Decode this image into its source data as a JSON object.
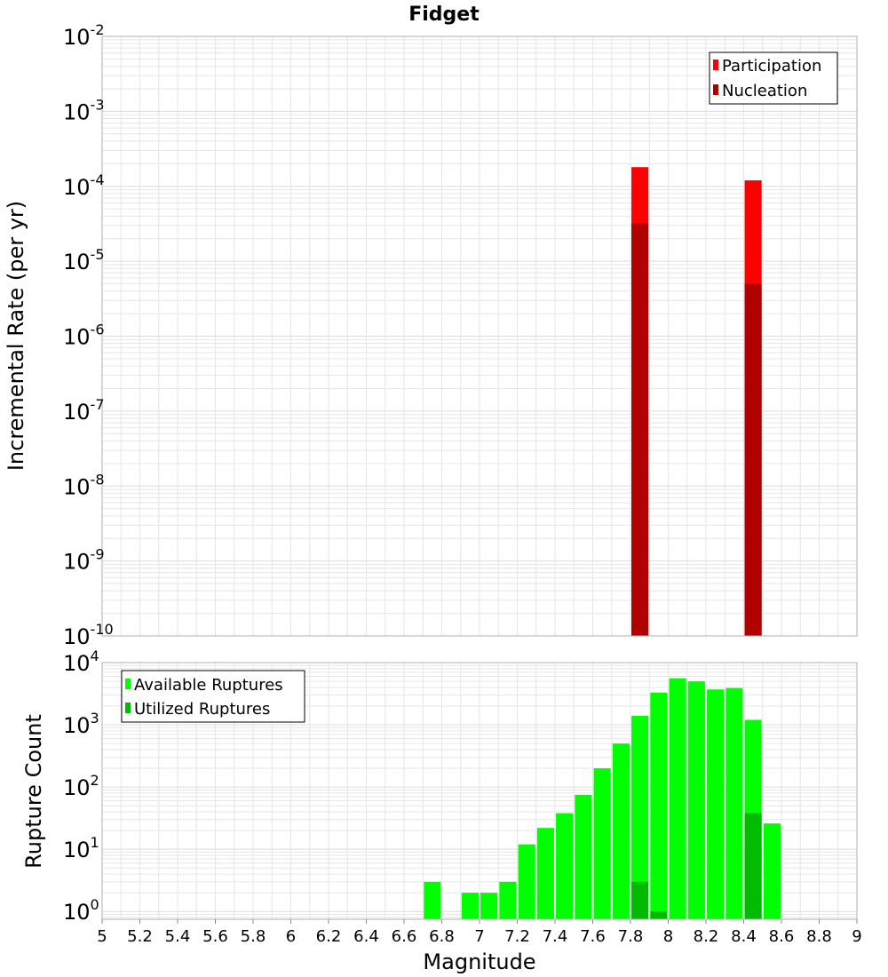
{
  "title": "Fidget",
  "chart_data": [
    {
      "type": "bar",
      "title": "Fidget",
      "xlabel": "",
      "ylabel": "Incremental Rate (per yr)",
      "yscale": "log",
      "ylim": [
        1e-10,
        0.01
      ],
      "xlim": [
        5,
        9
      ],
      "grid": true,
      "legend_position": "top-right",
      "y_tick_exponents": [
        "-10",
        "-9",
        "-8",
        "-7",
        "-6",
        "-5",
        "-4",
        "-3",
        "-2"
      ],
      "y_tick_base": "10",
      "bar_width": 0.09,
      "series": [
        {
          "name": "Participation",
          "color": "#ff0000",
          "x": [
            7.85,
            8.45
          ],
          "values": [
            0.00018,
            0.00012
          ]
        },
        {
          "name": "Nucleation",
          "color": "#b00000",
          "x": [
            7.85,
            8.45
          ],
          "values": [
            3.2e-05,
            5e-06
          ]
        }
      ]
    },
    {
      "type": "bar",
      "xlabel": "Magnitude",
      "ylabel": "Rupture Count",
      "yscale": "log",
      "ylim": [
        0.75,
        10000
      ],
      "xlim": [
        5,
        9
      ],
      "grid": true,
      "legend_position": "top-left",
      "y_tick_exponents": [
        "0",
        "1",
        "2",
        "3",
        "4"
      ],
      "y_tick_base": "10",
      "x_ticks": [
        "5",
        "5.2",
        "5.4",
        "5.6",
        "5.8",
        "6",
        "6.2",
        "6.4",
        "6.6",
        "6.8",
        "7",
        "7.2",
        "7.4",
        "7.6",
        "7.8",
        "8",
        "8.2",
        "8.4",
        "8.6",
        "8.8",
        "9"
      ],
      "bar_width": 0.09,
      "series": [
        {
          "name": "Available Ruptures",
          "color": "#00ff00",
          "x": [
            6.75,
            6.95,
            7.05,
            7.15,
            7.25,
            7.35,
            7.45,
            7.55,
            7.65,
            7.75,
            7.85,
            7.95,
            8.05,
            8.15,
            8.25,
            8.35,
            8.45,
            8.55
          ],
          "values": [
            3,
            2,
            2,
            3,
            12,
            22,
            38,
            75,
            200,
            500,
            1400,
            3300,
            5600,
            5000,
            3700,
            3900,
            1200,
            26
          ]
        },
        {
          "name": "Utilized Ruptures",
          "color": "#00bb00",
          "x": [
            7.85,
            7.95,
            8.45
          ],
          "values": [
            3,
            1,
            38
          ]
        }
      ]
    }
  ]
}
